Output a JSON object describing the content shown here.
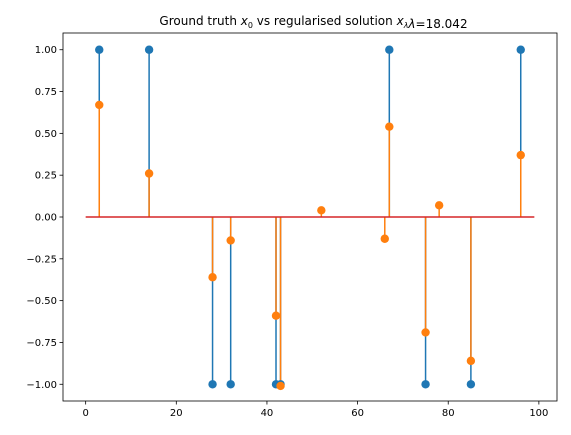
{
  "chart_data": {
    "type": "stem",
    "title": "Ground truth x₀ vs regularised solution xλ for λ=18.042",
    "title_parts": {
      "prefix": "Ground truth ",
      "x0_base": "x",
      "x0_sub": "0",
      "middle": " vs regularised solution ",
      "xl_base": "x",
      "xl_sub": "λ",
      "suffix_lambda": "λ",
      "suffix_value": "=18.042"
    },
    "xlim": [
      -5,
      104
    ],
    "ylim": [
      -1.1,
      1.1
    ],
    "x_ticks": [
      0,
      20,
      40,
      60,
      80,
      100
    ],
    "x_tick_labels": [
      "0",
      "20",
      "40",
      "60",
      "80",
      "100"
    ],
    "y_ticks": [
      1.0,
      0.75,
      0.5,
      0.25,
      0.0,
      -0.25,
      -0.5,
      -0.75,
      -1.0
    ],
    "y_tick_labels": [
      "1.00",
      "0.75",
      "0.50",
      "0.25",
      "0.00",
      "−0.25",
      "−0.50",
      "−0.75",
      "−1.00"
    ],
    "baseline": {
      "x_start": 0,
      "x_end": 99,
      "y": 0,
      "color": "#d62728"
    },
    "series": [
      {
        "color": "#1f77b4",
        "points": [
          {
            "x": 3,
            "y": 1.0
          },
          {
            "x": 14,
            "y": 1.0
          },
          {
            "x": 28,
            "y": -1.0
          },
          {
            "x": 32,
            "y": -1.0
          },
          {
            "x": 42,
            "y": -1.0
          },
          {
            "x": 43,
            "y": -1.0
          },
          {
            "x": 67,
            "y": 1.0
          },
          {
            "x": 75,
            "y": -1.0
          },
          {
            "x": 85,
            "y": -1.0
          },
          {
            "x": 96,
            "y": 1.0
          }
        ]
      },
      {
        "color": "#ff7f0e",
        "points": [
          {
            "x": 3,
            "y": 0.67
          },
          {
            "x": 14,
            "y": 0.26
          },
          {
            "x": 28,
            "y": -0.36
          },
          {
            "x": 32,
            "y": -0.14
          },
          {
            "x": 42,
            "y": -0.59
          },
          {
            "x": 43,
            "y": -1.01
          },
          {
            "x": 52,
            "y": 0.04
          },
          {
            "x": 66,
            "y": -0.13
          },
          {
            "x": 67,
            "y": 0.54
          },
          {
            "x": 75,
            "y": -0.69
          },
          {
            "x": 78,
            "y": 0.07
          },
          {
            "x": 85,
            "y": -0.86
          },
          {
            "x": 96,
            "y": 0.37
          }
        ]
      }
    ]
  }
}
